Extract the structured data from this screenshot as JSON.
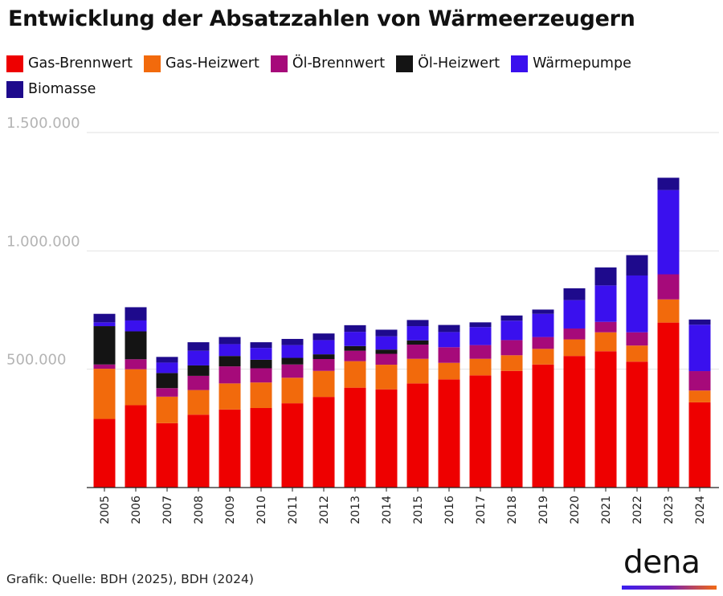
{
  "title": "Entwicklung der Absatzzahlen von Wärmeerzeugern",
  "source": "Grafik: Quelle: BDH (2025), BDH (2024)",
  "logo": {
    "text": "dena"
  },
  "chart_data": {
    "type": "bar",
    "stacked": true,
    "title": "Entwicklung der Absatzzahlen von Wärmeerzeugern",
    "xlabel": "",
    "ylabel": "",
    "ylim": [
      0,
      1500000
    ],
    "yticks": [
      500000,
      1000000,
      1500000
    ],
    "ytick_labels": [
      "500.000",
      "1.000.000",
      "1.500.000"
    ],
    "grid": true,
    "legend_position": "top",
    "categories": [
      "2005",
      "2006",
      "2007",
      "2008",
      "2009",
      "2010",
      "2011",
      "2012",
      "2013",
      "2014",
      "2015",
      "2016",
      "2017",
      "2018",
      "2019",
      "2020",
      "2021",
      "2022",
      "2023",
      "2024"
    ],
    "series": [
      {
        "name": "Gas-Brennwert",
        "color": "#ee0000",
        "values": [
          290000,
          348000,
          272000,
          308000,
          330000,
          336000,
          356000,
          383000,
          422000,
          415000,
          440000,
          457000,
          474000,
          493000,
          520000,
          556000,
          576000,
          532000,
          697000,
          360000
        ]
      },
      {
        "name": "Gas-Heizwert",
        "color": "#f26a0c",
        "values": [
          212000,
          152000,
          112000,
          104000,
          110000,
          108000,
          108000,
          110000,
          112000,
          104000,
          104000,
          70000,
          70000,
          66000,
          66000,
          70000,
          80000,
          68000,
          98000,
          50000
        ]
      },
      {
        "name": "Öl-Brennwert",
        "color": "#a60a7a",
        "values": [
          18000,
          42000,
          36000,
          60000,
          72000,
          60000,
          56000,
          50000,
          44000,
          46000,
          60000,
          66000,
          58000,
          64000,
          50000,
          46000,
          44000,
          56000,
          106000,
          82000
        ]
      },
      {
        "name": "Öl-Heizwert",
        "color": "#141414",
        "values": [
          162000,
          118000,
          64000,
          44000,
          44000,
          36000,
          28000,
          20000,
          20000,
          18000,
          18000,
          0,
          0,
          0,
          0,
          0,
          0,
          0,
          0,
          0
        ]
      },
      {
        "name": "Wärmepumpe",
        "color": "#3a10ee",
        "values": [
          16000,
          46000,
          44000,
          62000,
          50000,
          50000,
          54000,
          60000,
          60000,
          56000,
          60000,
          64000,
          76000,
          82000,
          98000,
          120000,
          154000,
          240000,
          356000,
          196000
        ]
      },
      {
        "name": "Biomasse",
        "color": "#1e0a8c",
        "values": [
          36000,
          56000,
          24000,
          36000,
          30000,
          24000,
          26000,
          28000,
          28000,
          28000,
          26000,
          30000,
          20000,
          22000,
          18000,
          50000,
          76000,
          86000,
          52000,
          22000
        ]
      }
    ]
  }
}
